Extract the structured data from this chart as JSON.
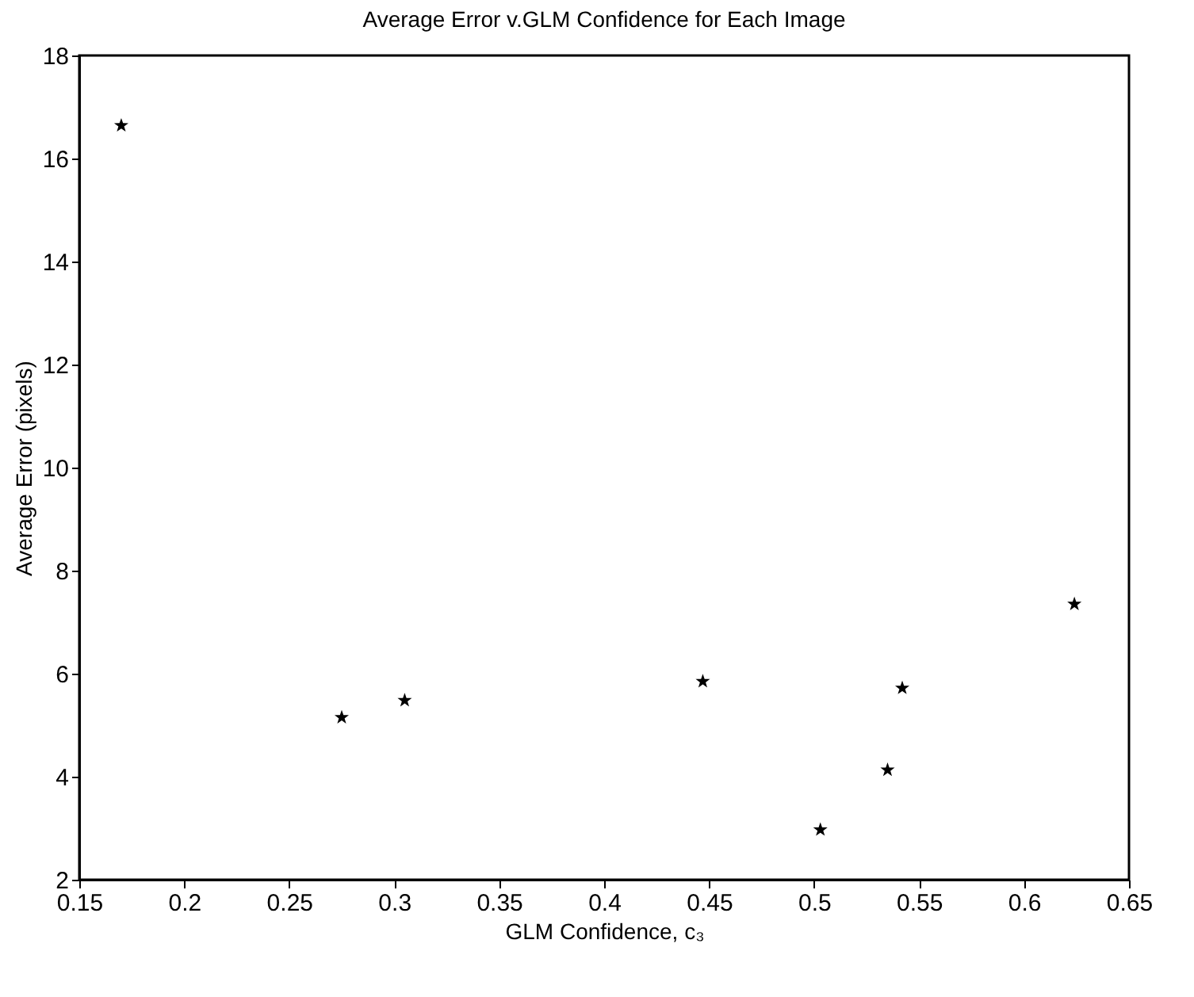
{
  "chart_data": {
    "type": "scatter",
    "title": "Average Error v.GLM Confidence for Each Image",
    "xlabel": "GLM Confidence, c₃",
    "ylabel": "Average Error (pixels)",
    "x": [
      0.17,
      0.275,
      0.305,
      0.447,
      0.503,
      0.535,
      0.542,
      0.624
    ],
    "series": [
      {
        "color": "#000000",
        "values": [
          16.64,
          5.15,
          5.48,
          5.85,
          2.97,
          4.13,
          5.72,
          7.35
        ]
      }
    ],
    "xlim": [
      0.15,
      0.65
    ],
    "xticks": [
      0.15,
      0.2,
      0.25,
      0.3,
      0.35,
      0.4,
      0.45,
      0.5,
      0.55,
      0.6,
      0.65
    ],
    "ylim": [
      2,
      18
    ],
    "yticks": [
      2,
      4,
      6,
      8,
      10,
      12,
      14,
      16,
      18
    ],
    "grid": false,
    "legend": false,
    "marker": "star"
  }
}
